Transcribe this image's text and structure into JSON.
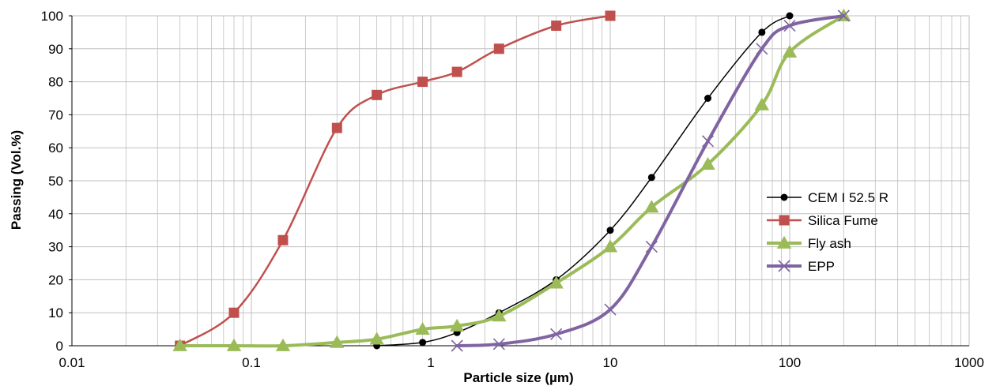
{
  "chart_data": {
    "type": "scatter",
    "title": "",
    "xlabel": "Particle size (µm)",
    "ylabel": "Passing (Vol.%)",
    "xscale": "log",
    "xlim": [
      0.01,
      1000
    ],
    "ylim": [
      0,
      100
    ],
    "x_ticks": [
      0.01,
      0.1,
      1,
      10,
      100,
      1000
    ],
    "x_tick_labels": [
      "0.01",
      "0.1",
      "1",
      "10",
      "100",
      "1000"
    ],
    "y_ticks": [
      0,
      10,
      20,
      30,
      40,
      50,
      60,
      70,
      80,
      90,
      100
    ],
    "y_tick_labels": [
      "0",
      "10",
      "20",
      "30",
      "40",
      "50",
      "60",
      "70",
      "80",
      "90",
      "100"
    ],
    "grid": true,
    "minor_grid": true,
    "legend_position": "right",
    "series": [
      {
        "name": "CEM I 52.5 R",
        "color": "#000000",
        "marker": "circle",
        "line_width": 1.5,
        "points": [
          [
            0.5,
            0
          ],
          [
            0.9,
            1
          ],
          [
            1.4,
            4
          ],
          [
            2.4,
            10
          ],
          [
            5,
            20
          ],
          [
            10,
            35
          ],
          [
            17,
            51
          ],
          [
            35,
            75
          ],
          [
            70,
            95
          ],
          [
            100,
            100
          ]
        ]
      },
      {
        "name": "Silica Fume",
        "color": "#C0504D",
        "marker": "square",
        "line_width": 2.5,
        "points": [
          [
            0.04,
            0
          ],
          [
            0.08,
            10
          ],
          [
            0.15,
            32
          ],
          [
            0.3,
            66
          ],
          [
            0.5,
            76
          ],
          [
            0.9,
            80
          ],
          [
            1.4,
            83
          ],
          [
            2.4,
            90
          ],
          [
            5,
            97
          ],
          [
            10,
            100
          ]
        ]
      },
      {
        "name": "Fly ash",
        "color": "#9BBB59",
        "marker": "triangle",
        "line_width": 4,
        "points": [
          [
            0.04,
            0
          ],
          [
            0.08,
            0
          ],
          [
            0.15,
            0
          ],
          [
            0.3,
            1
          ],
          [
            0.5,
            2
          ],
          [
            0.9,
            5
          ],
          [
            1.4,
            6
          ],
          [
            2.4,
            9
          ],
          [
            5,
            19
          ],
          [
            10,
            30
          ],
          [
            17,
            42
          ],
          [
            35,
            55
          ],
          [
            70,
            73
          ],
          [
            100,
            89
          ],
          [
            200,
            100
          ]
        ]
      },
      {
        "name": "EPP",
        "color": "#8064A2",
        "marker": "x",
        "line_width": 4,
        "points": [
          [
            1.4,
            0
          ],
          [
            2.4,
            0.5
          ],
          [
            5,
            3.5
          ],
          [
            10,
            11
          ],
          [
            17,
            30
          ],
          [
            35,
            62
          ],
          [
            70,
            90
          ],
          [
            100,
            97
          ],
          [
            200,
            100
          ]
        ]
      }
    ]
  }
}
